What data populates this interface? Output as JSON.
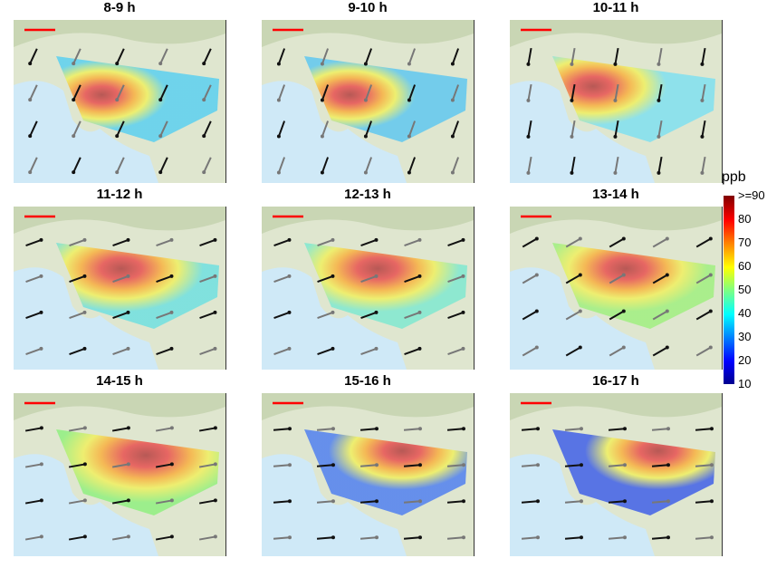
{
  "panels": [
    {
      "title": "8-9 h"
    },
    {
      "title": "9-10 h"
    },
    {
      "title": "10-11 h"
    },
    {
      "title": "11-12 h"
    },
    {
      "title": "12-13 h"
    },
    {
      "title": "13-14 h"
    },
    {
      "title": "14-15 h"
    },
    {
      "title": "15-16 h"
    },
    {
      "title": "16-17 h"
    }
  ],
  "colorbar": {
    "unit": "ppb",
    "ticks": [
      ">=90",
      "80",
      "70",
      "60",
      "50",
      "40",
      "30",
      "20",
      "10"
    ],
    "range": [
      10,
      90
    ],
    "colormap": "jet"
  },
  "colors": {
    "ocean": "#cfe9f7",
    "land": "#dfe6cf",
    "scale_bar": "#ff0000"
  }
}
